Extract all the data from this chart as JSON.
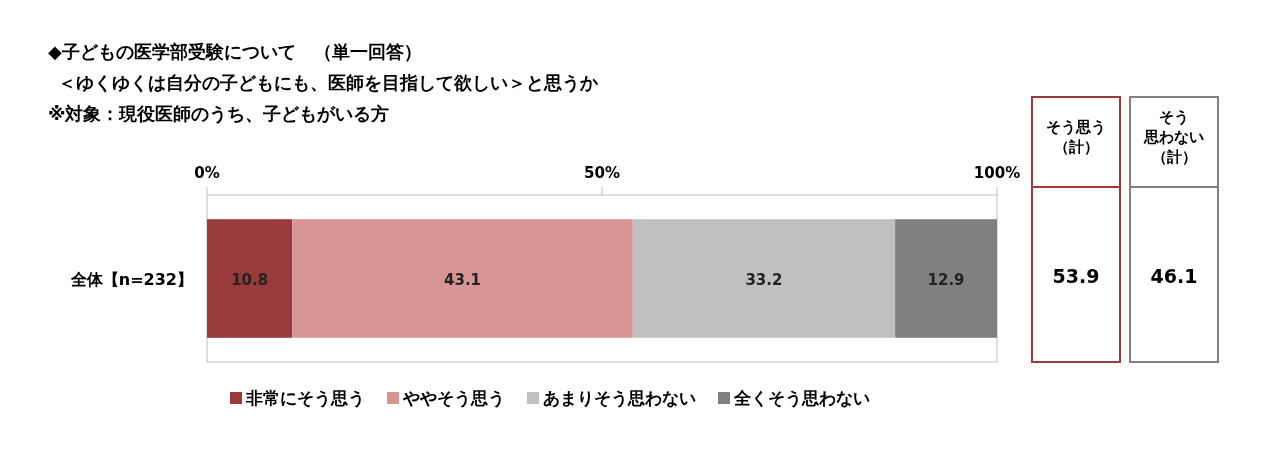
{
  "chart_data": {
    "type": "bar",
    "orientation": "horizontal",
    "stacked": true,
    "title": "◆子どもの医学部受験について　（単一回答）",
    "subtitle": "＜ゆくゆくは自分の子どもにも、医師を目指して欲しい＞と思うか",
    "annotations": [
      "※対象：現役医師のうち、子どもがいる方",
      "そう思う",
      "（計）",
      "53.9",
      "そう",
      "思わない",
      "（計）",
      "46.1"
    ],
    "categories": [
      "全体【n=232】"
    ],
    "series": [
      {
        "name": "非常にそう思う",
        "color": "#9b3a3c",
        "values": [
          10.8
        ]
      },
      {
        "name": "ややそう思う",
        "color": "#d99594",
        "values": [
          43.1
        ]
      },
      {
        "name": "あまりそう思わない",
        "color": "#c0c0c0",
        "values": [
          33.2
        ]
      },
      {
        "name": "全くそう思わない",
        "color": "#808080",
        "values": [
          12.9
        ]
      }
    ],
    "xlim": [
      0,
      100
    ],
    "xticks": [
      {
        "value": 0,
        "label": "0%"
      },
      {
        "value": 50,
        "label": "50%"
      },
      {
        "value": 100,
        "label": "100%"
      }
    ],
    "data_labels": true,
    "legend": "bottom"
  }
}
